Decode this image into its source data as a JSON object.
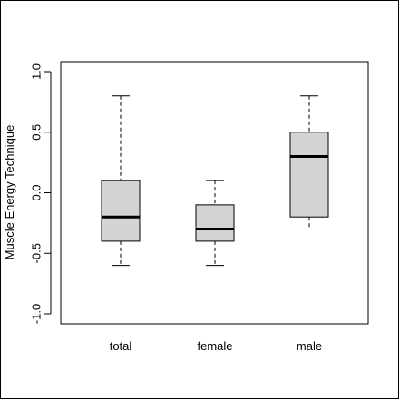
{
  "chart_data": {
    "type": "boxplot",
    "title": "",
    "xlabel": "",
    "ylabel": "Muscle Energy Technique",
    "ylim": [
      -1.0,
      1.0
    ],
    "yticks": [
      -1.0,
      -0.5,
      0.0,
      0.5,
      1.0
    ],
    "ytick_labels": [
      "-1.0",
      "-0.5",
      "0.0",
      "0.5",
      "1.0"
    ],
    "grid": false,
    "box_color": "#d3d3d3",
    "categories": [
      "total",
      "female",
      "male"
    ],
    "boxes": [
      {
        "min": -0.6,
        "q1": -0.4,
        "median": -0.2,
        "q3": 0.1,
        "max": 0.8
      },
      {
        "min": -0.6,
        "q1": -0.4,
        "median": -0.3,
        "q3": -0.1,
        "max": 0.1
      },
      {
        "min": -0.3,
        "q1": -0.2,
        "median": 0.3,
        "q3": 0.5,
        "max": 0.8
      }
    ]
  }
}
